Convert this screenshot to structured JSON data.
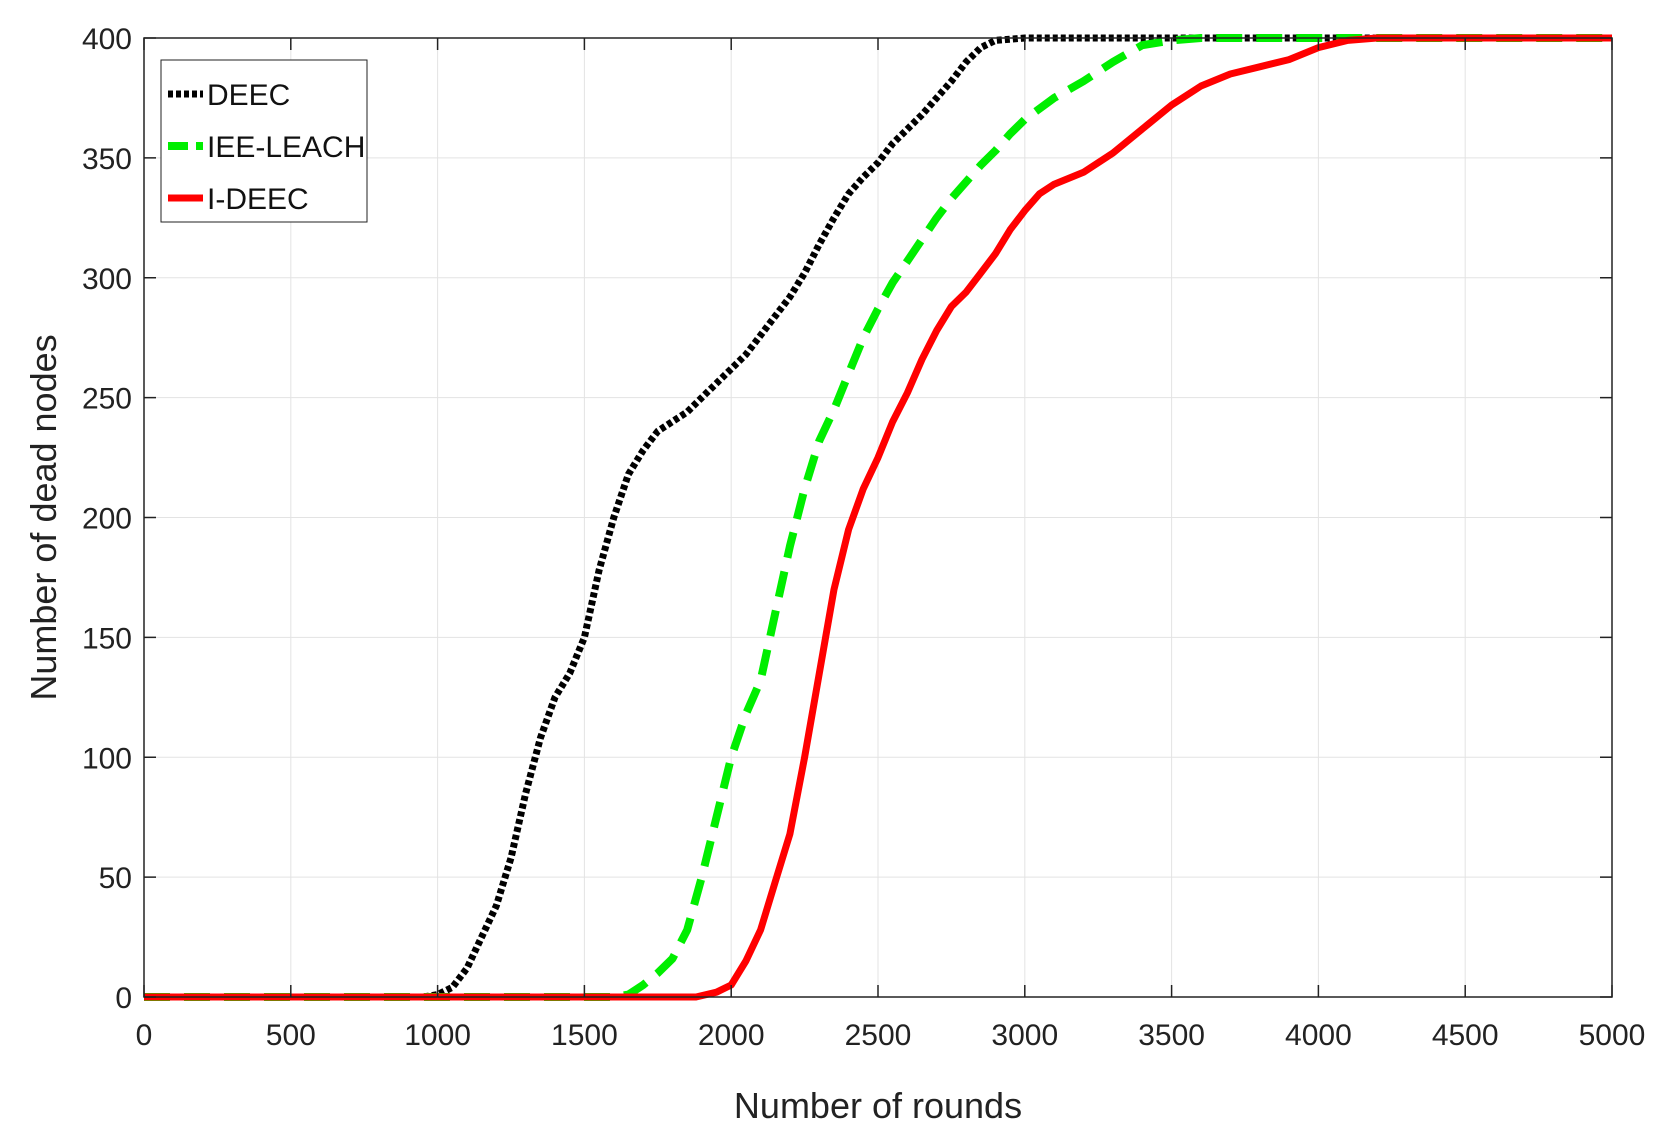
{
  "chart_data": {
    "type": "line",
    "xlabel": "Number of rounds",
    "ylabel": "Number of dead nodes",
    "xlim": [
      0,
      5000
    ],
    "ylim": [
      0,
      400
    ],
    "x_ticks": [
      0,
      500,
      1000,
      1500,
      2000,
      2500,
      3000,
      3500,
      4000,
      4500,
      5000
    ],
    "y_ticks": [
      0,
      50,
      100,
      150,
      200,
      250,
      300,
      350,
      400
    ],
    "grid": true,
    "legend_position": "top-left",
    "series": [
      {
        "name": "DEEC",
        "color": "#000000",
        "style": "dotted",
        "points": [
          [
            0,
            0
          ],
          [
            950,
            0
          ],
          [
            1000,
            1
          ],
          [
            1050,
            4
          ],
          [
            1100,
            12
          ],
          [
            1150,
            25
          ],
          [
            1200,
            38
          ],
          [
            1250,
            58
          ],
          [
            1300,
            85
          ],
          [
            1350,
            108
          ],
          [
            1400,
            125
          ],
          [
            1450,
            135
          ],
          [
            1500,
            150
          ],
          [
            1550,
            178
          ],
          [
            1600,
            200
          ],
          [
            1650,
            218
          ],
          [
            1700,
            228
          ],
          [
            1750,
            236
          ],
          [
            1800,
            240
          ],
          [
            1850,
            244
          ],
          [
            1900,
            250
          ],
          [
            1950,
            256
          ],
          [
            2000,
            262
          ],
          [
            2050,
            268
          ],
          [
            2100,
            276
          ],
          [
            2150,
            284
          ],
          [
            2200,
            292
          ],
          [
            2250,
            302
          ],
          [
            2300,
            314
          ],
          [
            2350,
            325
          ],
          [
            2400,
            335
          ],
          [
            2450,
            342
          ],
          [
            2500,
            348
          ],
          [
            2550,
            356
          ],
          [
            2600,
            362
          ],
          [
            2650,
            368
          ],
          [
            2700,
            375
          ],
          [
            2750,
            382
          ],
          [
            2800,
            390
          ],
          [
            2850,
            396
          ],
          [
            2900,
            399
          ],
          [
            3000,
            400
          ],
          [
            5000,
            400
          ]
        ]
      },
      {
        "name": "IEE-LEACH",
        "color": "#00ee00",
        "style": "dashed",
        "points": [
          [
            0,
            0
          ],
          [
            1600,
            0
          ],
          [
            1650,
            1
          ],
          [
            1700,
            5
          ],
          [
            1750,
            10
          ],
          [
            1800,
            16
          ],
          [
            1850,
            28
          ],
          [
            1900,
            50
          ],
          [
            1950,
            75
          ],
          [
            2000,
            100
          ],
          [
            2050,
            118
          ],
          [
            2100,
            132
          ],
          [
            2150,
            160
          ],
          [
            2200,
            188
          ],
          [
            2250,
            212
          ],
          [
            2300,
            232
          ],
          [
            2350,
            245
          ],
          [
            2400,
            260
          ],
          [
            2450,
            275
          ],
          [
            2500,
            287
          ],
          [
            2550,
            298
          ],
          [
            2600,
            307
          ],
          [
            2650,
            316
          ],
          [
            2700,
            325
          ],
          [
            2750,
            333
          ],
          [
            2800,
            340
          ],
          [
            2850,
            347
          ],
          [
            2900,
            353
          ],
          [
            2950,
            360
          ],
          [
            3000,
            366
          ],
          [
            3100,
            375
          ],
          [
            3200,
            382
          ],
          [
            3300,
            390
          ],
          [
            3400,
            397
          ],
          [
            3500,
            399
          ],
          [
            3600,
            400
          ],
          [
            5000,
            400
          ]
        ]
      },
      {
        "name": "I-DEEC",
        "color": "#ff0000",
        "style": "solid",
        "points": [
          [
            0,
            0
          ],
          [
            1880,
            0
          ],
          [
            1950,
            2
          ],
          [
            2000,
            5
          ],
          [
            2050,
            15
          ],
          [
            2100,
            28
          ],
          [
            2150,
            48
          ],
          [
            2200,
            68
          ],
          [
            2250,
            100
          ],
          [
            2300,
            135
          ],
          [
            2350,
            170
          ],
          [
            2400,
            195
          ],
          [
            2450,
            212
          ],
          [
            2500,
            225
          ],
          [
            2550,
            240
          ],
          [
            2600,
            252
          ],
          [
            2650,
            266
          ],
          [
            2700,
            278
          ],
          [
            2750,
            288
          ],
          [
            2800,
            294
          ],
          [
            2850,
            302
          ],
          [
            2900,
            310
          ],
          [
            2950,
            320
          ],
          [
            3000,
            328
          ],
          [
            3050,
            335
          ],
          [
            3100,
            339
          ],
          [
            3200,
            344
          ],
          [
            3300,
            352
          ],
          [
            3400,
            362
          ],
          [
            3500,
            372
          ],
          [
            3600,
            380
          ],
          [
            3700,
            385
          ],
          [
            3800,
            388
          ],
          [
            3900,
            391
          ],
          [
            4000,
            396
          ],
          [
            4100,
            399
          ],
          [
            4200,
            400
          ],
          [
            5000,
            400
          ]
        ]
      }
    ]
  }
}
